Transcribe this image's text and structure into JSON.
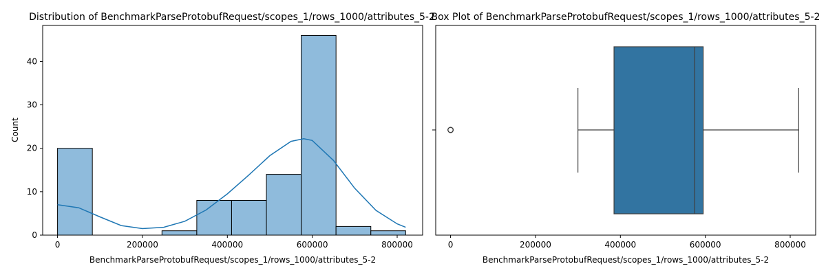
{
  "chart_data": [
    {
      "type": "bar",
      "subtype": "histogram-with-kde",
      "title": "Distribution of BenchmarkParseProtobufRequest/scopes_1/rows_1000/attributes_5-2",
      "xlabel": "BenchmarkParseProtobufRequest/scopes_1/rows_1000/attributes_5-2",
      "ylabel": "Count",
      "xlim": [
        -35000,
        860000
      ],
      "ylim": [
        0,
        48.3
      ],
      "xticks": [
        0,
        200000,
        400000,
        600000,
        800000
      ],
      "xtick_labels": [
        "0",
        "200000",
        "400000",
        "600000",
        "800000"
      ],
      "yticks": [
        0,
        10,
        20,
        30,
        40
      ],
      "ytick_labels": [
        "0",
        "10",
        "20",
        "30",
        "40"
      ],
      "bins": [
        {
          "start": 0,
          "end": 82000,
          "count": 20
        },
        {
          "start": 82000,
          "end": 164000,
          "count": 0
        },
        {
          "start": 164000,
          "end": 246000,
          "count": 0
        },
        {
          "start": 246000,
          "end": 328000,
          "count": 1
        },
        {
          "start": 328000,
          "end": 410000,
          "count": 8
        },
        {
          "start": 410000,
          "end": 492000,
          "count": 8
        },
        {
          "start": 492000,
          "end": 574000,
          "count": 14
        },
        {
          "start": 574000,
          "end": 656000,
          "count": 46
        },
        {
          "start": 656000,
          "end": 738000,
          "count": 2
        },
        {
          "start": 738000,
          "end": 820000,
          "count": 1
        }
      ],
      "kde": {
        "x": [
          0,
          50000,
          100000,
          150000,
          200000,
          250000,
          300000,
          350000,
          400000,
          450000,
          500000,
          550000,
          580000,
          600000,
          650000,
          700000,
          750000,
          800000,
          820000
        ],
        "y": [
          7,
          6.3,
          4.2,
          2.2,
          1.5,
          1.8,
          3.2,
          5.8,
          9.5,
          13.8,
          18.3,
          21.6,
          22.2,
          21.8,
          17.2,
          10.8,
          5.7,
          2.6,
          1.8
        ]
      },
      "bar_color": "#8fbbdc",
      "line_color": "#1f77b4",
      "grid": false
    },
    {
      "type": "box",
      "title": "Box Plot of BenchmarkParseProtobufRequest/scopes_1/rows_1000/attributes_5-2",
      "xlabel": "BenchmarkParseProtobufRequest/scopes_1/rows_1000/attributes_5-2",
      "xlim": [
        -35000,
        860000
      ],
      "xticks": [
        0,
        200000,
        400000,
        600000,
        800000
      ],
      "xtick_labels": [
        "0",
        "200000",
        "400000",
        "600000",
        "800000"
      ],
      "whisker_low": 300000,
      "q1": 385000,
      "median": 575000,
      "q3": 595000,
      "whisker_high": 820000,
      "outliers": [
        0,
        0,
        0
      ],
      "box_color": "#3274a1",
      "line_color": "#3f3f3f",
      "grid": false
    }
  ]
}
